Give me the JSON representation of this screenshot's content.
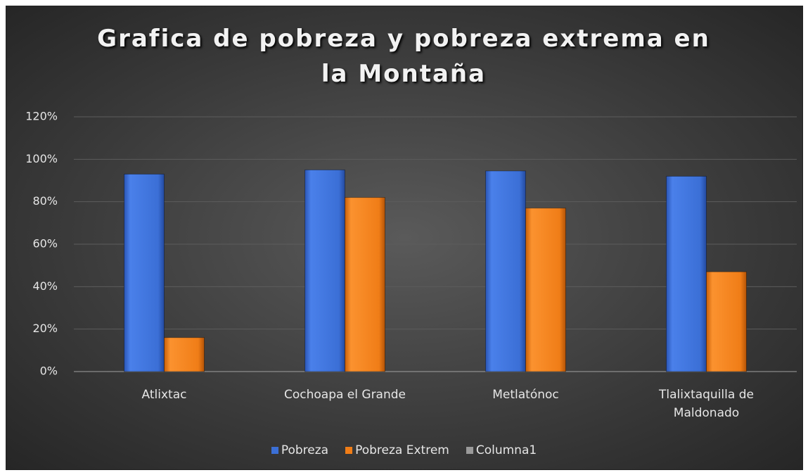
{
  "chart_data": {
    "type": "bar",
    "title": "Grafica de pobreza y pobreza extrema en la Montaña",
    "categories": [
      "Atlixtac",
      "Cochoapa el Grande",
      "Metlatónoc",
      "Tlalixtaquilla de Maldonado"
    ],
    "series": [
      {
        "name": "Pobreza",
        "color": "#3b6fd6",
        "values": [
          93,
          95,
          94.5,
          92
        ]
      },
      {
        "name": "Pobreza Extrem",
        "color": "#f07d17",
        "values": [
          16,
          82,
          77,
          47
        ]
      },
      {
        "name": "Columna1",
        "color": "#9a9a9a",
        "values": [
          null,
          null,
          null,
          null
        ]
      }
    ],
    "ylim": [
      0,
      120
    ],
    "yticks": [
      {
        "value": 0,
        "label": "0%"
      },
      {
        "value": 20,
        "label": "20%"
      },
      {
        "value": 40,
        "label": "40%"
      },
      {
        "value": 60,
        "label": "60%"
      },
      {
        "value": 80,
        "label": "80%"
      },
      {
        "value": 100,
        "label": "100%"
      },
      {
        "value": 120,
        "label": "120%"
      }
    ],
    "grid": true,
    "legend": "bottom"
  }
}
